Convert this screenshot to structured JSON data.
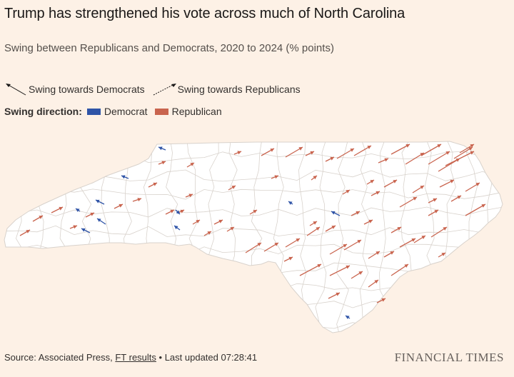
{
  "header": {
    "title": "Trump has strengthened his vote across much of North Carolina",
    "subtitle": "Swing between Republicans and Democrats, 2020 to 2024 (% points)"
  },
  "legend": {
    "arrows": {
      "democrats_label": "Swing towards Democrats",
      "republicans_label": "Swing towards Republicans"
    },
    "direction": {
      "title": "Swing direction:",
      "democrat_label": "Democrat",
      "republican_label": "Republican",
      "democrat_color": "#2f54a7",
      "republican_color": "#c9644e"
    }
  },
  "map": {
    "region": "North Carolina",
    "fill_color": "#ffffff",
    "border_color": "#d8d2cc"
  },
  "footer": {
    "source_prefix": "Source: Associated Press, ",
    "source_link": "FT results",
    "updated": " • Last updated 07:28:41",
    "logo": "FINANCIAL TIMES"
  }
}
